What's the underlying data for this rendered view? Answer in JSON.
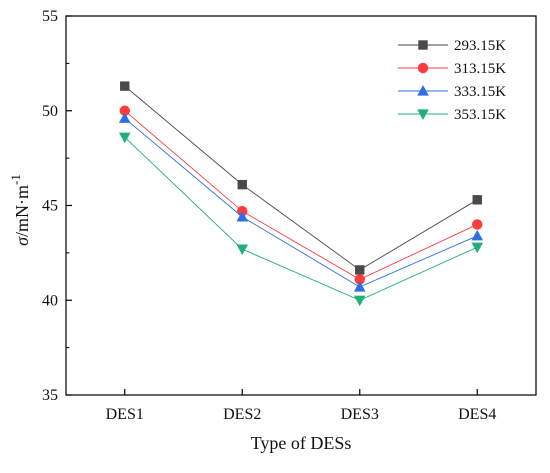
{
  "chart_data": {
    "type": "line",
    "title": "",
    "xlabel": "Type of DESs",
    "ylabel": {
      "symbol": "σ",
      "unit_main": "/mN·m",
      "unit_exp": "-1"
    },
    "categories": [
      "DES1",
      "DES2",
      "DES3",
      "DES4"
    ],
    "ylim": [
      35,
      55
    ],
    "yticks": [
      35,
      40,
      45,
      50,
      55
    ],
    "grid": false,
    "legend_position": "top-right",
    "series": [
      {
        "name": "293.15K",
        "values": [
          51.3,
          46.1,
          41.6,
          45.3
        ],
        "color": "#4a4a4a",
        "marker": "square"
      },
      {
        "name": "313.15K",
        "values": [
          50.0,
          44.7,
          41.1,
          44.0
        ],
        "color": "#ff3b3b",
        "marker": "circle"
      },
      {
        "name": "333.15K",
        "values": [
          49.6,
          44.4,
          40.7,
          43.4
        ],
        "color": "#2f6fe4",
        "marker": "triangle-up"
      },
      {
        "name": "353.15K",
        "values": [
          48.6,
          42.7,
          40.0,
          42.8
        ],
        "color": "#21b07a",
        "marker": "triangle-down"
      }
    ]
  }
}
